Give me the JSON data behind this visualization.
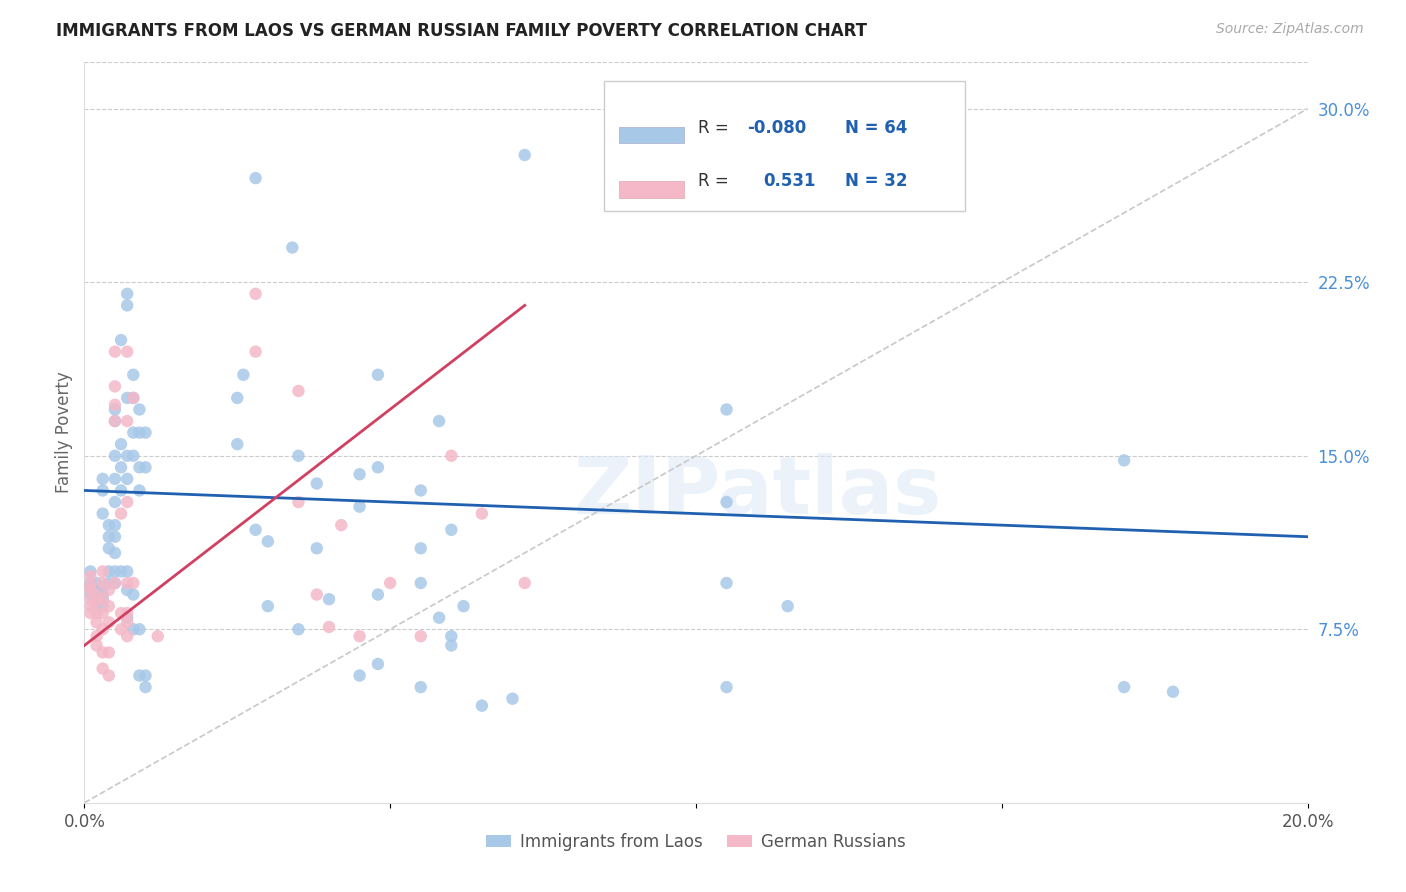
{
  "title": "IMMIGRANTS FROM LAOS VS GERMAN RUSSIAN FAMILY POVERTY CORRELATION CHART",
  "source": "Source: ZipAtlas.com",
  "ylabel": "Family Poverty",
  "xlim": [
    0.0,
    0.2
  ],
  "ylim": [
    0.0,
    0.32
  ],
  "xticks": [
    0.0,
    0.05,
    0.1,
    0.15,
    0.2
  ],
  "xtick_labels": [
    "0.0%",
    "",
    "",
    "",
    "20.0%"
  ],
  "yticks_right": [
    0.075,
    0.15,
    0.225,
    0.3
  ],
  "ytick_labels_right": [
    "7.5%",
    "15.0%",
    "22.5%",
    "30.0%"
  ],
  "grid_color": "#cccccc",
  "background_color": "#ffffff",
  "legend_labels": [
    "Immigrants from Laos",
    "German Russians"
  ],
  "color_blue": "#a8c8e8",
  "color_pink": "#f4b8c8",
  "color_blue_line": "#2060b0",
  "color_pink_line": "#d04060",
  "color_diag_line": "#c8c8c8",
  "watermark": "ZIPatlas",
  "blue_points": [
    [
      0.001,
      0.1
    ],
    [
      0.001,
      0.095
    ],
    [
      0.001,
      0.093
    ],
    [
      0.001,
      0.09
    ],
    [
      0.002,
      0.095
    ],
    [
      0.002,
      0.092
    ],
    [
      0.002,
      0.091
    ],
    [
      0.002,
      0.088
    ],
    [
      0.002,
      0.085
    ],
    [
      0.003,
      0.093
    ],
    [
      0.003,
      0.09
    ],
    [
      0.003,
      0.088
    ],
    [
      0.003,
      0.085
    ],
    [
      0.003,
      0.125
    ],
    [
      0.003,
      0.135
    ],
    [
      0.003,
      0.14
    ],
    [
      0.004,
      0.12
    ],
    [
      0.004,
      0.115
    ],
    [
      0.004,
      0.11
    ],
    [
      0.004,
      0.1
    ],
    [
      0.004,
      0.095
    ],
    [
      0.005,
      0.17
    ],
    [
      0.005,
      0.165
    ],
    [
      0.005,
      0.15
    ],
    [
      0.005,
      0.14
    ],
    [
      0.005,
      0.13
    ],
    [
      0.005,
      0.12
    ],
    [
      0.005,
      0.115
    ],
    [
      0.005,
      0.108
    ],
    [
      0.005,
      0.1
    ],
    [
      0.005,
      0.095
    ],
    [
      0.006,
      0.2
    ],
    [
      0.006,
      0.155
    ],
    [
      0.006,
      0.145
    ],
    [
      0.006,
      0.135
    ],
    [
      0.006,
      0.1
    ],
    [
      0.007,
      0.22
    ],
    [
      0.007,
      0.215
    ],
    [
      0.007,
      0.175
    ],
    [
      0.007,
      0.15
    ],
    [
      0.007,
      0.14
    ],
    [
      0.007,
      0.1
    ],
    [
      0.007,
      0.092
    ],
    [
      0.007,
      0.08
    ],
    [
      0.008,
      0.185
    ],
    [
      0.008,
      0.175
    ],
    [
      0.008,
      0.16
    ],
    [
      0.008,
      0.15
    ],
    [
      0.008,
      0.09
    ],
    [
      0.008,
      0.075
    ],
    [
      0.009,
      0.17
    ],
    [
      0.009,
      0.16
    ],
    [
      0.009,
      0.145
    ],
    [
      0.009,
      0.135
    ],
    [
      0.009,
      0.075
    ],
    [
      0.009,
      0.055
    ],
    [
      0.01,
      0.16
    ],
    [
      0.01,
      0.145
    ],
    [
      0.01,
      0.055
    ],
    [
      0.01,
      0.05
    ],
    [
      0.028,
      0.27
    ],
    [
      0.034,
      0.24
    ],
    [
      0.026,
      0.185
    ],
    [
      0.048,
      0.185
    ],
    [
      0.025,
      0.175
    ],
    [
      0.025,
      0.155
    ],
    [
      0.035,
      0.15
    ],
    [
      0.048,
      0.145
    ],
    [
      0.045,
      0.142
    ],
    [
      0.038,
      0.138
    ],
    [
      0.055,
      0.135
    ],
    [
      0.045,
      0.128
    ],
    [
      0.028,
      0.118
    ],
    [
      0.03,
      0.113
    ],
    [
      0.038,
      0.11
    ],
    [
      0.055,
      0.11
    ],
    [
      0.055,
      0.095
    ],
    [
      0.048,
      0.09
    ],
    [
      0.04,
      0.088
    ],
    [
      0.03,
      0.085
    ],
    [
      0.035,
      0.075
    ],
    [
      0.06,
      0.072
    ],
    [
      0.06,
      0.068
    ],
    [
      0.048,
      0.06
    ],
    [
      0.045,
      0.055
    ],
    [
      0.055,
      0.05
    ],
    [
      0.07,
      0.045
    ],
    [
      0.065,
      0.042
    ],
    [
      0.058,
      0.165
    ],
    [
      0.06,
      0.118
    ],
    [
      0.062,
      0.085
    ],
    [
      0.058,
      0.08
    ],
    [
      0.105,
      0.17
    ],
    [
      0.105,
      0.13
    ],
    [
      0.105,
      0.095
    ],
    [
      0.105,
      0.05
    ],
    [
      0.115,
      0.085
    ],
    [
      0.17,
      0.148
    ],
    [
      0.17,
      0.05
    ],
    [
      0.178,
      0.048
    ],
    [
      0.072,
      0.28
    ]
  ],
  "pink_points": [
    [
      0.001,
      0.098
    ],
    [
      0.001,
      0.094
    ],
    [
      0.001,
      0.092
    ],
    [
      0.001,
      0.088
    ],
    [
      0.001,
      0.085
    ],
    [
      0.001,
      0.082
    ],
    [
      0.002,
      0.09
    ],
    [
      0.002,
      0.087
    ],
    [
      0.002,
      0.082
    ],
    [
      0.002,
      0.078
    ],
    [
      0.002,
      0.072
    ],
    [
      0.002,
      0.068
    ],
    [
      0.003,
      0.1
    ],
    [
      0.003,
      0.095
    ],
    [
      0.003,
      0.088
    ],
    [
      0.003,
      0.082
    ],
    [
      0.003,
      0.075
    ],
    [
      0.003,
      0.065
    ],
    [
      0.003,
      0.058
    ],
    [
      0.004,
      0.092
    ],
    [
      0.004,
      0.085
    ],
    [
      0.004,
      0.078
    ],
    [
      0.004,
      0.065
    ],
    [
      0.004,
      0.055
    ],
    [
      0.005,
      0.195
    ],
    [
      0.005,
      0.18
    ],
    [
      0.005,
      0.172
    ],
    [
      0.005,
      0.165
    ],
    [
      0.005,
      0.095
    ],
    [
      0.006,
      0.125
    ],
    [
      0.006,
      0.082
    ],
    [
      0.006,
      0.075
    ],
    [
      0.007,
      0.195
    ],
    [
      0.007,
      0.165
    ],
    [
      0.007,
      0.13
    ],
    [
      0.007,
      0.095
    ],
    [
      0.007,
      0.082
    ],
    [
      0.007,
      0.078
    ],
    [
      0.007,
      0.072
    ],
    [
      0.008,
      0.175
    ],
    [
      0.008,
      0.095
    ],
    [
      0.012,
      0.072
    ],
    [
      0.028,
      0.22
    ],
    [
      0.028,
      0.195
    ],
    [
      0.035,
      0.178
    ],
    [
      0.035,
      0.13
    ],
    [
      0.038,
      0.09
    ],
    [
      0.04,
      0.076
    ],
    [
      0.042,
      0.12
    ],
    [
      0.045,
      0.072
    ],
    [
      0.05,
      0.095
    ],
    [
      0.055,
      0.072
    ],
    [
      0.06,
      0.15
    ],
    [
      0.065,
      0.125
    ],
    [
      0.072,
      0.095
    ]
  ],
  "blue_line_x": [
    0.0,
    0.2
  ],
  "blue_line_y": [
    0.135,
    0.115
  ],
  "pink_line_x": [
    0.0,
    0.072
  ],
  "pink_line_y": [
    0.068,
    0.215
  ]
}
